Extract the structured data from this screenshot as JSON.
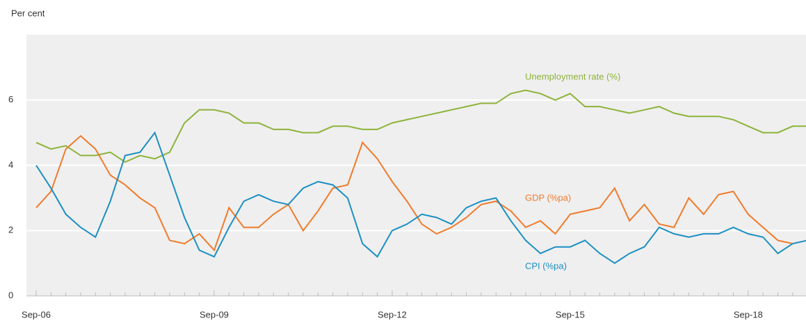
{
  "chart_data": {
    "type": "line",
    "y_label": "Per cent",
    "categories": [
      "Sep-06",
      null,
      null,
      null,
      null,
      null,
      null,
      null,
      null,
      null,
      null,
      null,
      "Sep-09",
      null,
      null,
      null,
      null,
      null,
      null,
      null,
      null,
      null,
      null,
      null,
      "Sep-12",
      null,
      null,
      null,
      null,
      null,
      null,
      null,
      null,
      null,
      null,
      null,
      "Sep-15",
      null,
      null,
      null,
      null,
      null,
      null,
      null,
      null,
      null,
      null,
      null,
      "Sep-18",
      null,
      null,
      null,
      null
    ],
    "series": [
      {
        "name": "Unemployment rate (%)",
        "color": "#8db33a",
        "values": [
          4.7,
          4.5,
          4.6,
          4.3,
          4.3,
          4.4,
          4.1,
          4.3,
          4.2,
          4.4,
          5.3,
          5.7,
          5.7,
          5.6,
          5.3,
          5.3,
          5.1,
          5.1,
          5.0,
          5.0,
          5.2,
          5.2,
          5.1,
          5.1,
          5.3,
          5.4,
          5.5,
          5.6,
          5.7,
          5.8,
          5.9,
          5.9,
          6.2,
          6.3,
          6.2,
          6.0,
          6.2,
          5.8,
          5.8,
          5.7,
          5.6,
          5.7,
          5.8,
          5.6,
          5.5,
          5.5,
          5.5,
          5.4,
          5.2,
          5.0,
          5.0,
          5.2,
          5.2
        ]
      },
      {
        "name": "GDP (%pa)",
        "color": "#f07b2b",
        "values": [
          2.7,
          3.2,
          4.5,
          4.9,
          4.5,
          3.7,
          3.4,
          3.0,
          2.7,
          1.7,
          1.6,
          1.9,
          1.4,
          2.7,
          2.1,
          2.1,
          2.5,
          2.8,
          2.0,
          2.6,
          3.3,
          3.4,
          4.7,
          4.2,
          3.5,
          2.9,
          2.2,
          1.9,
          2.1,
          2.4,
          2.8,
          2.9,
          2.6,
          2.1,
          2.3,
          1.9,
          2.5,
          2.6,
          2.7,
          3.3,
          2.3,
          2.8,
          2.2,
          2.1,
          3.0,
          2.5,
          3.1,
          3.2,
          2.5,
          2.1,
          1.7,
          1.6,
          null
        ]
      },
      {
        "name": "CPI (%pa)",
        "color": "#1b8fc1",
        "values": [
          4.0,
          3.3,
          2.5,
          2.1,
          1.8,
          2.9,
          4.3,
          4.4,
          5.0,
          3.7,
          2.4,
          1.4,
          1.2,
          2.1,
          2.9,
          3.1,
          2.9,
          2.8,
          3.3,
          3.5,
          3.4,
          3.0,
          1.6,
          1.2,
          2.0,
          2.2,
          2.5,
          2.4,
          2.2,
          2.7,
          2.9,
          3.0,
          2.3,
          1.7,
          1.3,
          1.5,
          1.5,
          1.7,
          1.3,
          1.0,
          1.3,
          1.5,
          2.1,
          1.9,
          1.8,
          1.9,
          1.9,
          2.1,
          1.9,
          1.8,
          1.3,
          1.6,
          1.7
        ]
      }
    ],
    "ylim": [
      0,
      8
    ],
    "yticks": [
      0,
      2,
      4,
      6
    ],
    "grid": true
  }
}
